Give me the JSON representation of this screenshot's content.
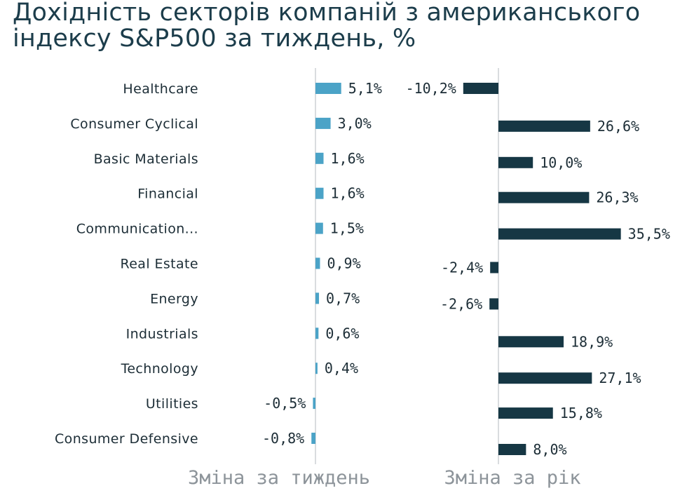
{
  "title": {
    "line1": "Дохідність секторів компаній з американського",
    "line2": "індексу S&P500 за тиждень, %"
  },
  "chart_data": [
    {
      "type": "bar",
      "orientation": "horizontal",
      "xlabel": "Зміна за тиждень",
      "categories": [
        "Healthcare",
        "Consumer Cyclical",
        "Basic Materials",
        "Financial",
        "Communication...",
        "Real Estate",
        "Energy",
        "Industrials",
        "Technology",
        "Utilities",
        "Consumer Defensive"
      ],
      "values": [
        5.1,
        3.0,
        1.6,
        1.6,
        1.5,
        0.9,
        0.7,
        0.6,
        0.4,
        -0.5,
        -0.8
      ],
      "value_labels": [
        "5,1%",
        "3,0%",
        "1,6%",
        "1,6%",
        "1,5%",
        "0,9%",
        "0,7%",
        "0,6%",
        "0,4%",
        "-0,5%",
        "-0,8%"
      ],
      "color": "#4ba3c7"
    },
    {
      "type": "bar",
      "orientation": "horizontal",
      "xlabel": "Зміна за рік",
      "categories": [
        "Healthcare",
        "Consumer Cyclical",
        "Basic Materials",
        "Financial",
        "Communication...",
        "Real Estate",
        "Energy",
        "Industrials",
        "Technology",
        "Utilities",
        "Consumer Defensive"
      ],
      "values": [
        -10.2,
        26.6,
        10.0,
        26.3,
        35.5,
        -2.4,
        -2.6,
        18.9,
        27.1,
        15.8,
        8.0
      ],
      "value_labels": [
        "-10,2%",
        "26,6%",
        "10,0%",
        "26,3%",
        "35,5%",
        "-2,4%",
        "-2,6%",
        "18,9%",
        "27,1%",
        "15,8%",
        "8,0%"
      ],
      "color": "#163744"
    }
  ],
  "colors": {
    "title": "#1c3d4b",
    "axis_line": "#d9dcdf",
    "axis_title": "#8d949a"
  }
}
